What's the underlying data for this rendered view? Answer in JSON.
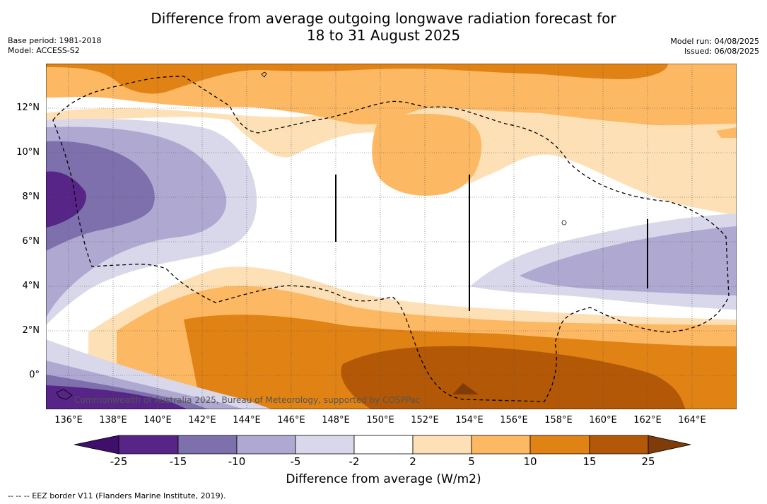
{
  "header": {
    "title_line1": "Difference from average outgoing longwave radiation forecast for",
    "title_line2": "18 to 31 August 2025",
    "base_period": "Base period: 1981-2018",
    "model": "Model: ACCESS-S2",
    "model_run": "Model run: 04/08/2025",
    "issued": "Issued: 06/08/2025"
  },
  "map": {
    "lat_labels": [
      "12°N",
      "10°N",
      "8°N",
      "6°N",
      "4°N",
      "2°N",
      "0°"
    ],
    "lon_labels": [
      "136°E",
      "138°E",
      "140°E",
      "142°E",
      "144°E",
      "146°E",
      "148°E",
      "150°E",
      "152°E",
      "154°E",
      "156°E",
      "158°E",
      "160°E",
      "162°E",
      "164°E"
    ],
    "watermark": "Commonwealth of Australia 2025, Bureau of Meteorology, supported by COSPPac",
    "colors": {
      "neg25": "#3f0f6b",
      "neg15": "#572487",
      "neg10": "#7d70ad",
      "neg5": "#afa9d2",
      "neg2": "#d9d8ea",
      "zero": "#ffffff",
      "pos2": "#fee0b6",
      "pos5": "#fdb863",
      "pos10": "#e08214",
      "pos15": "#b35806",
      "pos25": "#7f3b08"
    }
  },
  "colorbar": {
    "ticks": [
      "-25",
      "-15",
      "-10",
      "-5",
      "-2",
      "2",
      "5",
      "10",
      "15",
      "25"
    ],
    "title": "Difference from average (W/m2)"
  },
  "legend": {
    "eez": "--  --  -- EEZ border V11 (Flanders Marine Institute, 2019)."
  }
}
